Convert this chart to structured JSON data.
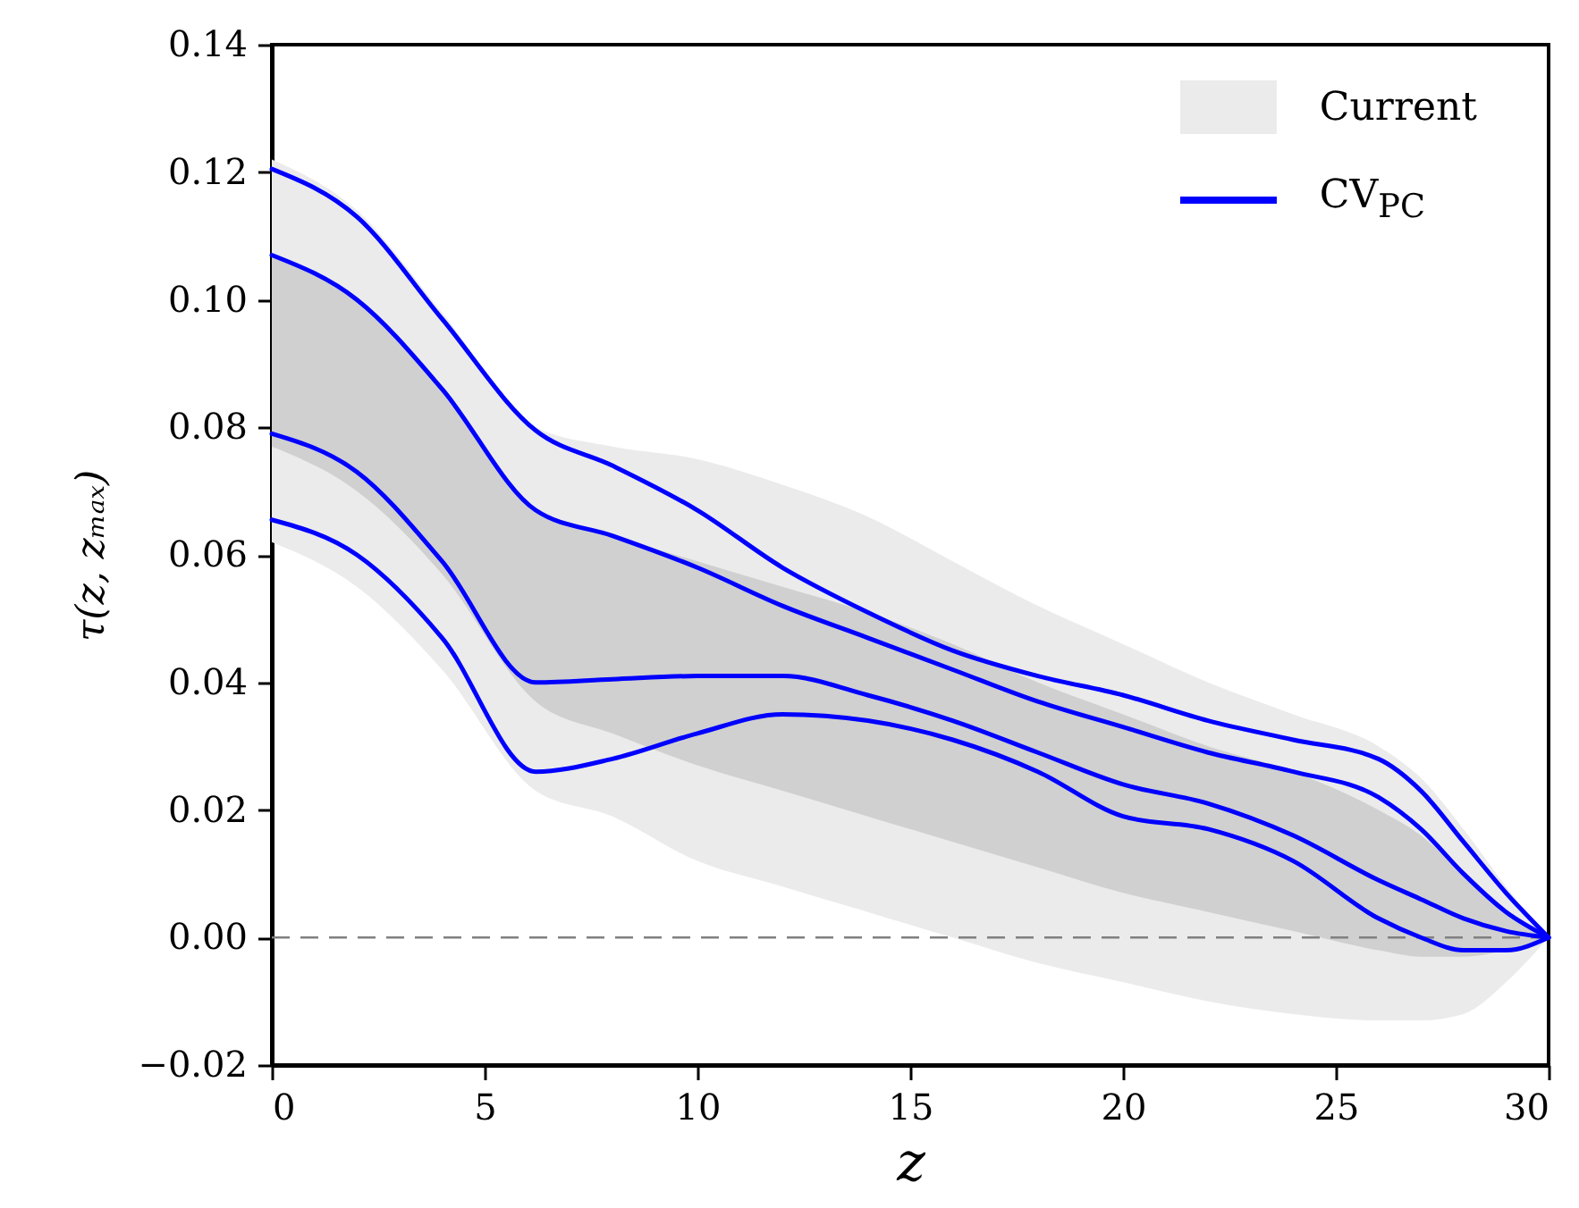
{
  "chart_data": {
    "type": "line",
    "xlabel": "z",
    "ylabel": "τ(z, zₘₐₓ)",
    "x": [
      0,
      2,
      4,
      6.2,
      8,
      10,
      12,
      14,
      16,
      18,
      20,
      22,
      24,
      26,
      27,
      28,
      29,
      30
    ],
    "series": [
      {
        "name": "Current",
        "type": "area",
        "color": "#ebebeb",
        "values": [
          null,
          null,
          null,
          null,
          null,
          null,
          null,
          null,
          null,
          null,
          null,
          null,
          null,
          null,
          null,
          null,
          null,
          null
        ],
        "lower": [
          0.062,
          0.055,
          0.042,
          0.023,
          0.019,
          0.012,
          0.008,
          0.004,
          0.0,
          -0.004,
          -0.007,
          -0.01,
          -0.012,
          -0.013,
          -0.013,
          -0.012,
          -0.007,
          0.0
        ],
        "upper": [
          0.122,
          0.114,
          0.098,
          0.08,
          0.077,
          0.075,
          0.071,
          0.066,
          0.059,
          0.052,
          0.046,
          0.04,
          0.035,
          0.03,
          0.025,
          0.017,
          0.008,
          0.0
        ]
      },
      {
        "type": "area",
        "color": "#d0d0d0",
        "values": [
          null,
          null,
          null,
          null,
          null,
          null,
          null,
          null,
          null,
          null,
          null,
          null,
          null,
          null,
          null,
          null,
          null,
          null
        ],
        "lower": [
          0.077,
          0.07,
          0.057,
          0.037,
          0.032,
          0.027,
          0.023,
          0.019,
          0.015,
          0.011,
          0.007,
          0.004,
          0.001,
          -0.002,
          -0.003,
          -0.003,
          -0.002,
          0.0
        ],
        "upper": [
          0.107,
          0.1,
          0.086,
          0.067,
          0.063,
          0.059,
          0.055,
          0.051,
          0.046,
          0.04,
          0.035,
          0.03,
          0.026,
          0.02,
          0.016,
          0.01,
          0.004,
          0.0
        ]
      },
      {
        "name": "CV$_{PC}$",
        "type": "line",
        "color": "#0000ff",
        "values": [
          0.1205,
          0.113,
          0.097,
          0.0795,
          0.074,
          0.067,
          0.058,
          0.051,
          0.045,
          0.041,
          0.038,
          0.034,
          0.031,
          0.028,
          0.023,
          0.015,
          0.007,
          0.0
        ]
      },
      {
        "type": "line",
        "color": "#0000ff",
        "values": [
          0.107,
          0.1,
          0.086,
          0.067,
          0.063,
          0.058,
          0.052,
          0.047,
          0.042,
          0.037,
          0.033,
          0.029,
          0.026,
          0.022,
          0.017,
          0.01,
          0.004,
          0.0
        ]
      },
      {
        "type": "line",
        "color": "#0000ff",
        "values": [
          0.079,
          0.073,
          0.059,
          0.04,
          0.0405,
          0.041,
          0.041,
          0.038,
          0.034,
          0.029,
          0.024,
          0.021,
          0.016,
          0.009,
          0.006,
          0.003,
          0.001,
          0.0
        ]
      },
      {
        "type": "line",
        "color": "#0000ff",
        "values": [
          0.0655,
          0.06,
          0.047,
          0.026,
          0.028,
          0.032,
          0.035,
          0.034,
          0.031,
          0.026,
          0.019,
          0.017,
          0.012,
          0.003,
          0.0,
          -0.002,
          -0.002,
          0.0
        ]
      }
    ],
    "xlim": [
      0,
      30
    ],
    "xticks": [
      0,
      5,
      10,
      15,
      20,
      25,
      30
    ],
    "ylim": [
      -0.02,
      0.14
    ],
    "yticks": [
      {
        "value": -0.02,
        "label": "−0.02"
      },
      {
        "value": 0,
        "label": "0.00"
      },
      {
        "value": 0.02,
        "label": "0.02"
      },
      {
        "value": 0.04,
        "label": "0.04"
      },
      {
        "value": 0.06,
        "label": "0.06"
      },
      {
        "value": 0.08,
        "label": "0.08"
      },
      {
        "value": 0.1,
        "label": "0.10"
      },
      {
        "value": 0.12,
        "label": "0.12"
      },
      {
        "value": 0.14,
        "label": "0.14"
      }
    ],
    "ref_lines": [
      {
        "axis": "y",
        "value": 0,
        "color": "#808080",
        "line_style": "dashed"
      }
    ],
    "grid": false,
    "legend": "top right"
  }
}
